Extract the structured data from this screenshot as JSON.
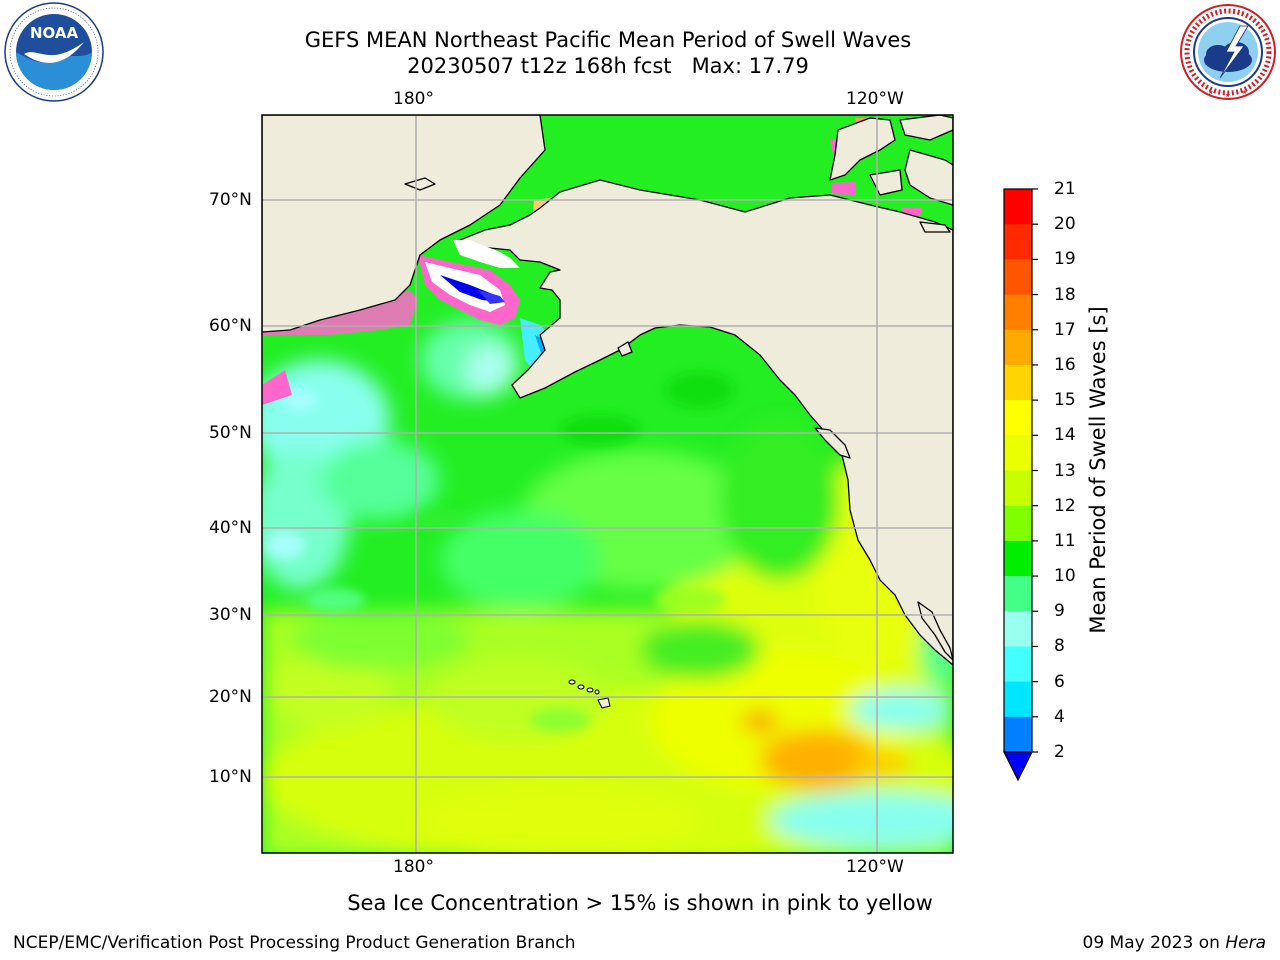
{
  "header": {
    "title_line1": "GEFS MEAN Northeast Pacific Mean Period of Swell Waves",
    "title_line2": "20230507 t12z 168h fcst   Max: 17.79"
  },
  "logos": {
    "left": {
      "name": "NOAA",
      "ring_text": "NATIONAL OCEANIC AND ATMOSPHERIC ADMINISTRATION · U.S. DEPARTMENT OF COMMERCE"
    },
    "right": {
      "name": "NATIONAL WEATHER SERVICE"
    }
  },
  "map": {
    "lon_labels_top": [
      "180°",
      "120°W"
    ],
    "lon_labels_bottom": [
      "180°",
      "120°W"
    ],
    "lat_labels": [
      "70°N",
      "60°N",
      "50°N",
      "40°N",
      "30°N",
      "20°N",
      "10°N"
    ],
    "colors": {
      "land": "#efecdc",
      "ice": "#ff66cc",
      "grid": "#b0b0b0"
    }
  },
  "colorbar": {
    "label": "Mean Period of Swell Waves [s]",
    "ticks": [
      "21",
      "20",
      "19",
      "18",
      "17",
      "16",
      "15",
      "14",
      "13",
      "12",
      "11",
      "10",
      "9",
      "8",
      "6",
      "4",
      "2"
    ],
    "colors": [
      "#ff0000",
      "#ff2a00",
      "#ff5500",
      "#ff8000",
      "#ffaa00",
      "#ffd400",
      "#ffff00",
      "#eaff00",
      "#c8ff00",
      "#80ff00",
      "#00ee00",
      "#44ff88",
      "#99ffee",
      "#44ffff",
      "#00e6ff",
      "#0080ff"
    ],
    "under_color": "#0000ff"
  },
  "footer": {
    "ice_note": "Sea Ice Concentration > 15% is shown in pink to yellow",
    "credit": "NCEP/EMC/Verification Post Processing Product Generation Branch",
    "date": "09 May 2023 on",
    "host": "Hera"
  }
}
